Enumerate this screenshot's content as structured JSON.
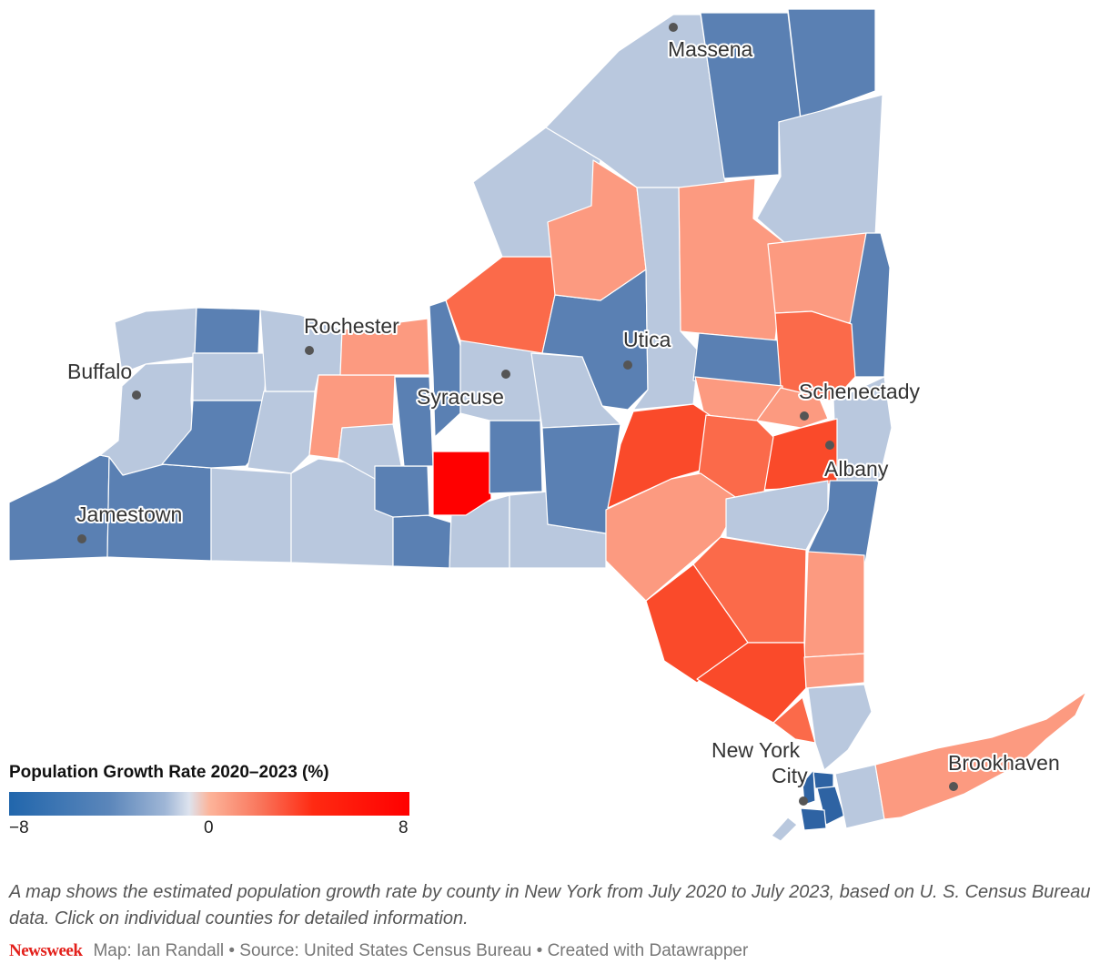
{
  "map": {
    "title": "Population Growth Rate 2020–2023 (%)",
    "colors": {
      "strong_decline": "#2e63a3",
      "decline": "#5a80b3",
      "slight_decline": "#b9c8de",
      "slight_growth": "#fc9a80",
      "growth": "#fb6a4a",
      "strong_growth": "#fa4a2a",
      "highest_growth": "#ff0000"
    },
    "cities": [
      {
        "name": "Massena"
      },
      {
        "name": "Rochester"
      },
      {
        "name": "Buffalo"
      },
      {
        "name": "Utica"
      },
      {
        "name": "Syracuse"
      },
      {
        "name": "Schenectady"
      },
      {
        "name": "Albany"
      },
      {
        "name": "Jamestown"
      },
      {
        "name": "New York"
      },
      {
        "name": "City"
      },
      {
        "name": "Brookhaven"
      }
    ],
    "legend": {
      "title": "Population Growth Rate 2020–2023 (%)",
      "min_label": "−8",
      "mid_label": "0",
      "max_label": "8"
    }
  },
  "caption": "A map shows the estimated population growth rate by county in New York from July 2020 to July 2023, based on U. S. Census Bureau data. Click on individual counties for detailed information.",
  "footer": {
    "brand": "Newsweek",
    "credits": "Map: Ian Randall • Source: United States Census Bureau • Created with Datawrapper"
  }
}
